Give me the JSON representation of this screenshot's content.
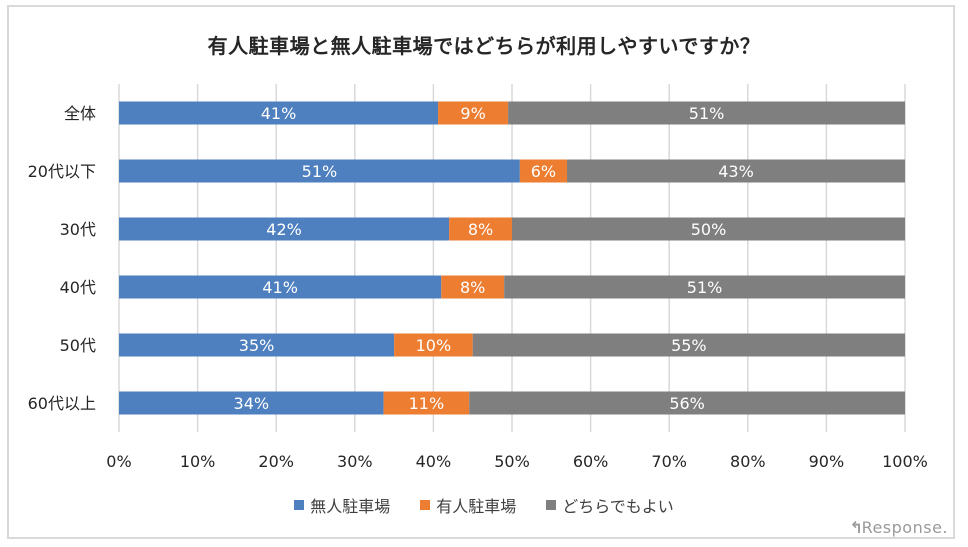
{
  "title": "有人駐車場と無人駐車場ではどちらが利用しやすいですか？",
  "watermark": {
    "arrow": "↰",
    "text": "Response."
  },
  "legend": [
    {
      "label": "無人駐車場",
      "color": "#4e7fbf"
    },
    {
      "label": "有人駐車場",
      "color": "#ec7d31"
    },
    {
      "label": "どちらでもよい",
      "color": "#7f7f7f"
    }
  ],
  "chart_data": {
    "type": "bar",
    "orientation": "horizontal",
    "stacked": true,
    "title": "有人駐車場と無人駐車場ではどちらが利用しやすいですか？",
    "xlabel": "",
    "ylabel": "",
    "xlim": [
      0,
      100
    ],
    "x_ticks": [
      "0%",
      "10%",
      "20%",
      "30%",
      "40%",
      "50%",
      "60%",
      "70%",
      "80%",
      "90%",
      "100%"
    ],
    "grid": true,
    "legend_position": "bottom",
    "categories": [
      "全体",
      "20代以下",
      "30代",
      "40代",
      "50代",
      "60代以上"
    ],
    "series": [
      {
        "name": "無人駐車場",
        "color": "#4e7fbf",
        "values": [
          41,
          51,
          42,
          41,
          35,
          34
        ]
      },
      {
        "name": "有人駐車場",
        "color": "#ec7d31",
        "values": [
          9,
          6,
          8,
          8,
          10,
          11
        ]
      },
      {
        "name": "どちらでもよい",
        "color": "#7f7f7f",
        "values": [
          51,
          43,
          50,
          51,
          55,
          56
        ]
      }
    ],
    "value_suffix": "%"
  }
}
